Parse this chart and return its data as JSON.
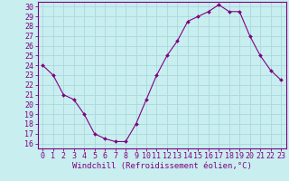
{
  "x": [
    0,
    1,
    2,
    3,
    4,
    5,
    6,
    7,
    8,
    9,
    10,
    11,
    12,
    13,
    14,
    15,
    16,
    17,
    18,
    19,
    20,
    21,
    22,
    23
  ],
  "y": [
    24.0,
    23.0,
    21.0,
    20.5,
    19.0,
    17.0,
    16.5,
    16.2,
    16.2,
    18.0,
    20.5,
    23.0,
    25.0,
    26.5,
    28.5,
    29.0,
    29.5,
    30.2,
    29.5,
    29.5,
    27.0,
    25.0,
    23.5,
    22.5
  ],
  "line_color": "#800080",
  "marker": "D",
  "marker_size": 2.0,
  "background_color": "#c8eef0",
  "grid_color": "#aad8dc",
  "xlabel": "Windchill (Refroidissement éolien,°C)",
  "ylabel_ticks": [
    16,
    17,
    18,
    19,
    20,
    21,
    22,
    23,
    24,
    25,
    26,
    27,
    28,
    29,
    30
  ],
  "xtick_labels": [
    "0",
    "1",
    "2",
    "3",
    "4",
    "5",
    "6",
    "7",
    "8",
    "9",
    "10",
    "11",
    "12",
    "13",
    "14",
    "15",
    "16",
    "17",
    "18",
    "19",
    "20",
    "21",
    "22",
    "23"
  ],
  "xlim": [
    -0.5,
    23.5
  ],
  "ylim": [
    15.5,
    30.5
  ],
  "tick_color": "#800080",
  "label_color": "#800080",
  "spine_color": "#800080",
  "xlabel_fontsize": 6.5,
  "tick_fontsize": 6.0
}
